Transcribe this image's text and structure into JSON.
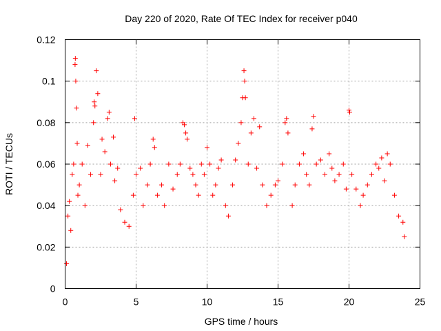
{
  "chart_data": {
    "type": "scatter",
    "title": "Day 220 of 2020, Rate Of TEC Index for receiver p040",
    "xlabel": "GPS time / hours",
    "ylabel": "ROTI / TECUs",
    "xlim": [
      0,
      25
    ],
    "ylim": [
      0,
      0.12
    ],
    "xticks": [
      "0",
      "5",
      "10",
      "15",
      "20",
      "25"
    ],
    "yticks": [
      "0",
      "0.02",
      "0.04",
      "0.06",
      "0.08",
      "0.1",
      "0.12"
    ],
    "grid": true,
    "marker": "+",
    "color": "#ff0000",
    "series": [
      {
        "points": [
          [
            0.1,
            0.012
          ],
          [
            0.2,
            0.035
          ],
          [
            0.3,
            0.042
          ],
          [
            0.4,
            0.028
          ],
          [
            0.5,
            0.055
          ],
          [
            0.6,
            0.06
          ],
          [
            0.7,
            0.108
          ],
          [
            0.72,
            0.111
          ],
          [
            0.75,
            0.1
          ],
          [
            0.8,
            0.087
          ],
          [
            0.85,
            0.07
          ],
          [
            0.9,
            0.045
          ],
          [
            1.0,
            0.05
          ],
          [
            1.2,
            0.06
          ],
          [
            1.4,
            0.04
          ],
          [
            1.6,
            0.069
          ],
          [
            1.8,
            0.055
          ],
          [
            2.0,
            0.08
          ],
          [
            2.05,
            0.09
          ],
          [
            2.1,
            0.088
          ],
          [
            2.2,
            0.105
          ],
          [
            2.3,
            0.094
          ],
          [
            2.5,
            0.055
          ],
          [
            2.6,
            0.072
          ],
          [
            2.8,
            0.066
          ],
          [
            3.0,
            0.082
          ],
          [
            3.1,
            0.085
          ],
          [
            3.2,
            0.06
          ],
          [
            3.4,
            0.073
          ],
          [
            3.5,
            0.052
          ],
          [
            3.7,
            0.058
          ],
          [
            3.9,
            0.038
          ],
          [
            4.2,
            0.032
          ],
          [
            4.5,
            0.03
          ],
          [
            4.8,
            0.045
          ],
          [
            4.9,
            0.082
          ],
          [
            5.0,
            0.055
          ],
          [
            5.3,
            0.058
          ],
          [
            5.5,
            0.04
          ],
          [
            5.8,
            0.05
          ],
          [
            6.0,
            0.06
          ],
          [
            6.2,
            0.072
          ],
          [
            6.3,
            0.068
          ],
          [
            6.5,
            0.045
          ],
          [
            6.8,
            0.05
          ],
          [
            7.0,
            0.04
          ],
          [
            7.3,
            0.06
          ],
          [
            7.6,
            0.048
          ],
          [
            7.9,
            0.055
          ],
          [
            8.1,
            0.06
          ],
          [
            8.3,
            0.08
          ],
          [
            8.4,
            0.079
          ],
          [
            8.5,
            0.075
          ],
          [
            8.6,
            0.072
          ],
          [
            8.8,
            0.058
          ],
          [
            9.0,
            0.055
          ],
          [
            9.2,
            0.05
          ],
          [
            9.4,
            0.045
          ],
          [
            9.6,
            0.06
          ],
          [
            9.8,
            0.055
          ],
          [
            10.0,
            0.068
          ],
          [
            10.2,
            0.06
          ],
          [
            10.4,
            0.045
          ],
          [
            10.6,
            0.05
          ],
          [
            10.8,
            0.058
          ],
          [
            11.0,
            0.062
          ],
          [
            11.3,
            0.04
          ],
          [
            11.5,
            0.035
          ],
          [
            11.8,
            0.05
          ],
          [
            12.0,
            0.062
          ],
          [
            12.2,
            0.07
          ],
          [
            12.4,
            0.08
          ],
          [
            12.5,
            0.092
          ],
          [
            12.6,
            0.105
          ],
          [
            12.65,
            0.1
          ],
          [
            12.7,
            0.092
          ],
          [
            12.9,
            0.06
          ],
          [
            13.1,
            0.075
          ],
          [
            13.3,
            0.082
          ],
          [
            13.5,
            0.058
          ],
          [
            13.7,
            0.078
          ],
          [
            13.9,
            0.05
          ],
          [
            14.2,
            0.04
          ],
          [
            14.5,
            0.045
          ],
          [
            14.8,
            0.05
          ],
          [
            15.0,
            0.052
          ],
          [
            15.3,
            0.06
          ],
          [
            15.5,
            0.08
          ],
          [
            15.6,
            0.082
          ],
          [
            15.7,
            0.075
          ],
          [
            16.0,
            0.04
          ],
          [
            16.2,
            0.05
          ],
          [
            16.5,
            0.06
          ],
          [
            16.8,
            0.065
          ],
          [
            17.0,
            0.055
          ],
          [
            17.2,
            0.05
          ],
          [
            17.4,
            0.077
          ],
          [
            17.5,
            0.083
          ],
          [
            17.7,
            0.06
          ],
          [
            18.0,
            0.062
          ],
          [
            18.3,
            0.055
          ],
          [
            18.6,
            0.065
          ],
          [
            18.8,
            0.058
          ],
          [
            19.0,
            0.052
          ],
          [
            19.3,
            0.055
          ],
          [
            19.6,
            0.06
          ],
          [
            19.8,
            0.048
          ],
          [
            20.0,
            0.086
          ],
          [
            20.05,
            0.085
          ],
          [
            20.2,
            0.055
          ],
          [
            20.5,
            0.048
          ],
          [
            20.8,
            0.04
          ],
          [
            21.0,
            0.045
          ],
          [
            21.3,
            0.05
          ],
          [
            21.6,
            0.055
          ],
          [
            21.9,
            0.06
          ],
          [
            22.1,
            0.058
          ],
          [
            22.3,
            0.063
          ],
          [
            22.5,
            0.052
          ],
          [
            22.7,
            0.065
          ],
          [
            22.9,
            0.06
          ],
          [
            23.2,
            0.045
          ],
          [
            23.5,
            0.035
          ],
          [
            23.8,
            0.032
          ],
          [
            23.9,
            0.025
          ]
        ]
      }
    ]
  }
}
